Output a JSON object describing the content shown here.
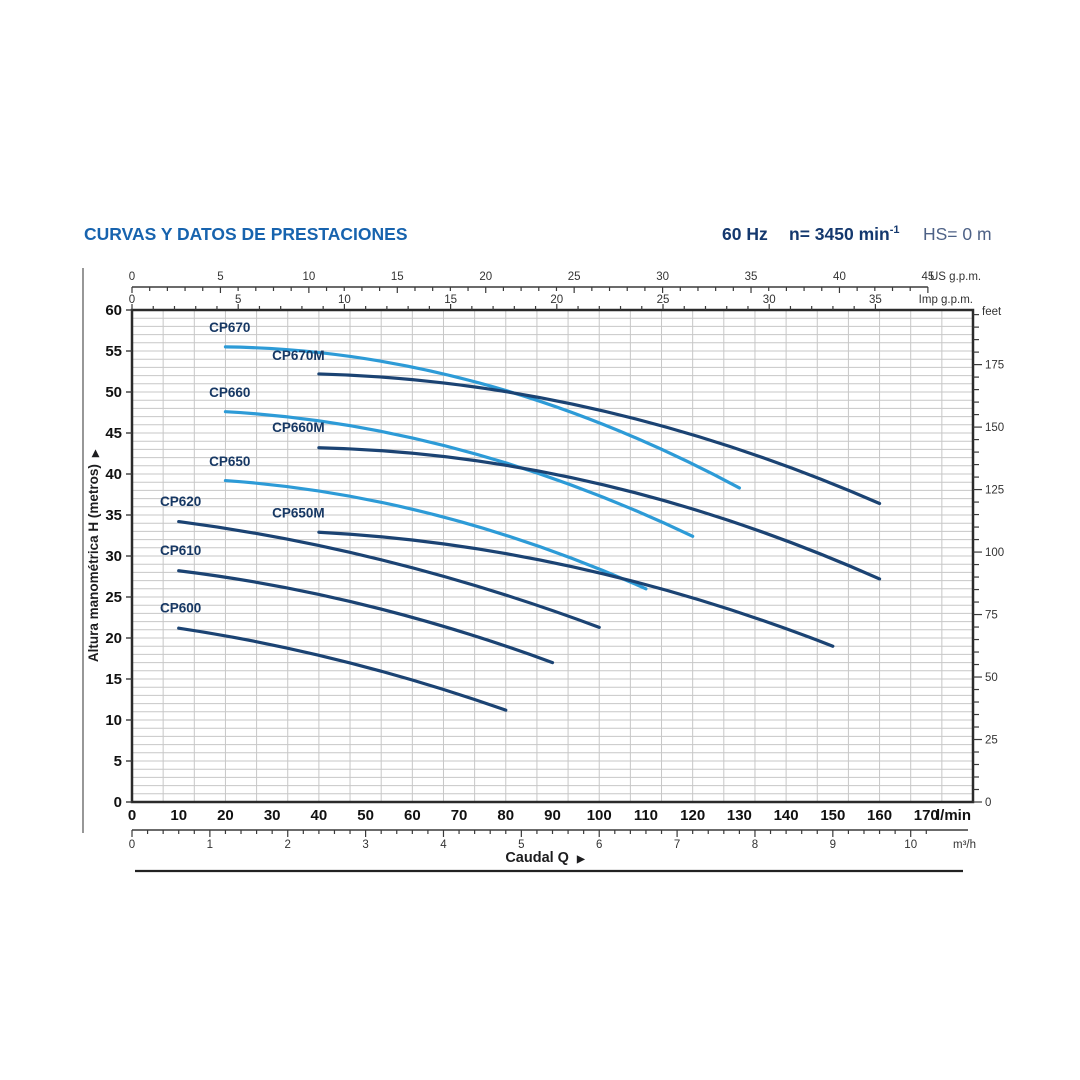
{
  "header": {
    "title": "CURVAS Y DATOS DE PRESTACIONES",
    "frequency": "60 Hz",
    "speed_prefix": "n= 3450 min",
    "speed_sup": "-1",
    "suction": "HS= 0 m"
  },
  "colors": {
    "title_blue": "#1763ae",
    "header_navy": "#14386e",
    "header_muted": "#4d6186",
    "curve_light": "#2d9bd7",
    "curve_dark": "#1b4373",
    "curve_label": "#173864",
    "grid": "#c7c7c7",
    "axis": "#3a3a3a",
    "bold_tick_text": "#111111",
    "small_tick_text": "#333333",
    "border": "#2b2b2b"
  },
  "chart_data": {
    "type": "line",
    "xlabel": "Caudal Q",
    "ylabel": "Altura manométrica H (metros)",
    "arrow_glyph": "▶",
    "axes": {
      "metros": {
        "min": 0,
        "max": 60,
        "label_step": 5,
        "grid_step": 1
      },
      "lmin": {
        "label": "l/min",
        "min": 0,
        "max": 170,
        "label_step": 10,
        "plot_max": 180
      },
      "m3h": {
        "label": "m³/h",
        "min": 0,
        "max": 10,
        "label_step": 1,
        "minor_step": 0.2,
        "tick_max": 10.2,
        "to_lmin": 16.6667
      },
      "usgpm": {
        "label": "US g.p.m.",
        "min": 0,
        "max": 45,
        "label_step": 5,
        "minor_step": 1,
        "to_lmin": 3.78541
      },
      "impgpm": {
        "label": "Imp g.p.m.",
        "min": 0,
        "max": 35,
        "label_step": 5,
        "minor_step": 1,
        "to_lmin": 4.54609
      },
      "feet": {
        "label": "feet",
        "min": 0,
        "max": 195,
        "label_step": 25,
        "minor_step": 5,
        "to_m": 0.3048
      }
    },
    "grid": {
      "vertical_step_m3h": 0.4,
      "horizontal_step_m": 1
    },
    "series": [
      {
        "name": "CP670",
        "color_key": "curve_light",
        "points": [
          [
            20,
            55.5
          ],
          [
            75,
            51.0
          ],
          [
            130,
            38.3
          ]
        ],
        "label_at": [
          16.5,
          57.3
        ]
      },
      {
        "name": "CP670M",
        "color_key": "curve_dark",
        "points": [
          [
            40,
            52.2
          ],
          [
            100,
            47.8
          ],
          [
            160,
            36.4
          ]
        ],
        "label_at": [
          30,
          53.9
        ]
      },
      {
        "name": "CP660",
        "color_key": "curve_light",
        "points": [
          [
            20,
            47.6
          ],
          [
            70,
            43.0
          ],
          [
            120,
            32.4
          ]
        ],
        "label_at": [
          16.5,
          49.4
        ]
      },
      {
        "name": "CP660M",
        "color_key": "curve_dark",
        "points": [
          [
            40,
            43.2
          ],
          [
            100,
            38.8
          ],
          [
            160,
            27.2
          ]
        ],
        "label_at": [
          30,
          45.1
        ]
      },
      {
        "name": "CP650",
        "color_key": "curve_light",
        "points": [
          [
            20,
            39.2
          ],
          [
            65,
            35.0
          ],
          [
            110,
            26.0
          ]
        ],
        "label_at": [
          16.5,
          41.0
        ]
      },
      {
        "name": "CP650M",
        "color_key": "curve_dark",
        "points": [
          [
            40,
            32.9
          ],
          [
            95,
            28.6
          ],
          [
            150,
            19.0
          ]
        ],
        "label_at": [
          30,
          34.7
        ]
      },
      {
        "name": "CP620",
        "color_key": "curve_dark",
        "points": [
          [
            10,
            34.2
          ],
          [
            55,
            29.3
          ],
          [
            100,
            21.3
          ]
        ],
        "label_at": [
          6,
          36.1
        ]
      },
      {
        "name": "CP610",
        "color_key": "curve_dark",
        "points": [
          [
            10,
            28.2
          ],
          [
            50,
            24.0
          ],
          [
            90,
            17.0
          ]
        ],
        "label_at": [
          6,
          30.1
        ]
      },
      {
        "name": "CP600",
        "color_key": "curve_dark",
        "points": [
          [
            10,
            21.2
          ],
          [
            45,
            17.2
          ],
          [
            80,
            11.2
          ]
        ],
        "label_at": [
          6,
          23.1
        ]
      }
    ]
  }
}
